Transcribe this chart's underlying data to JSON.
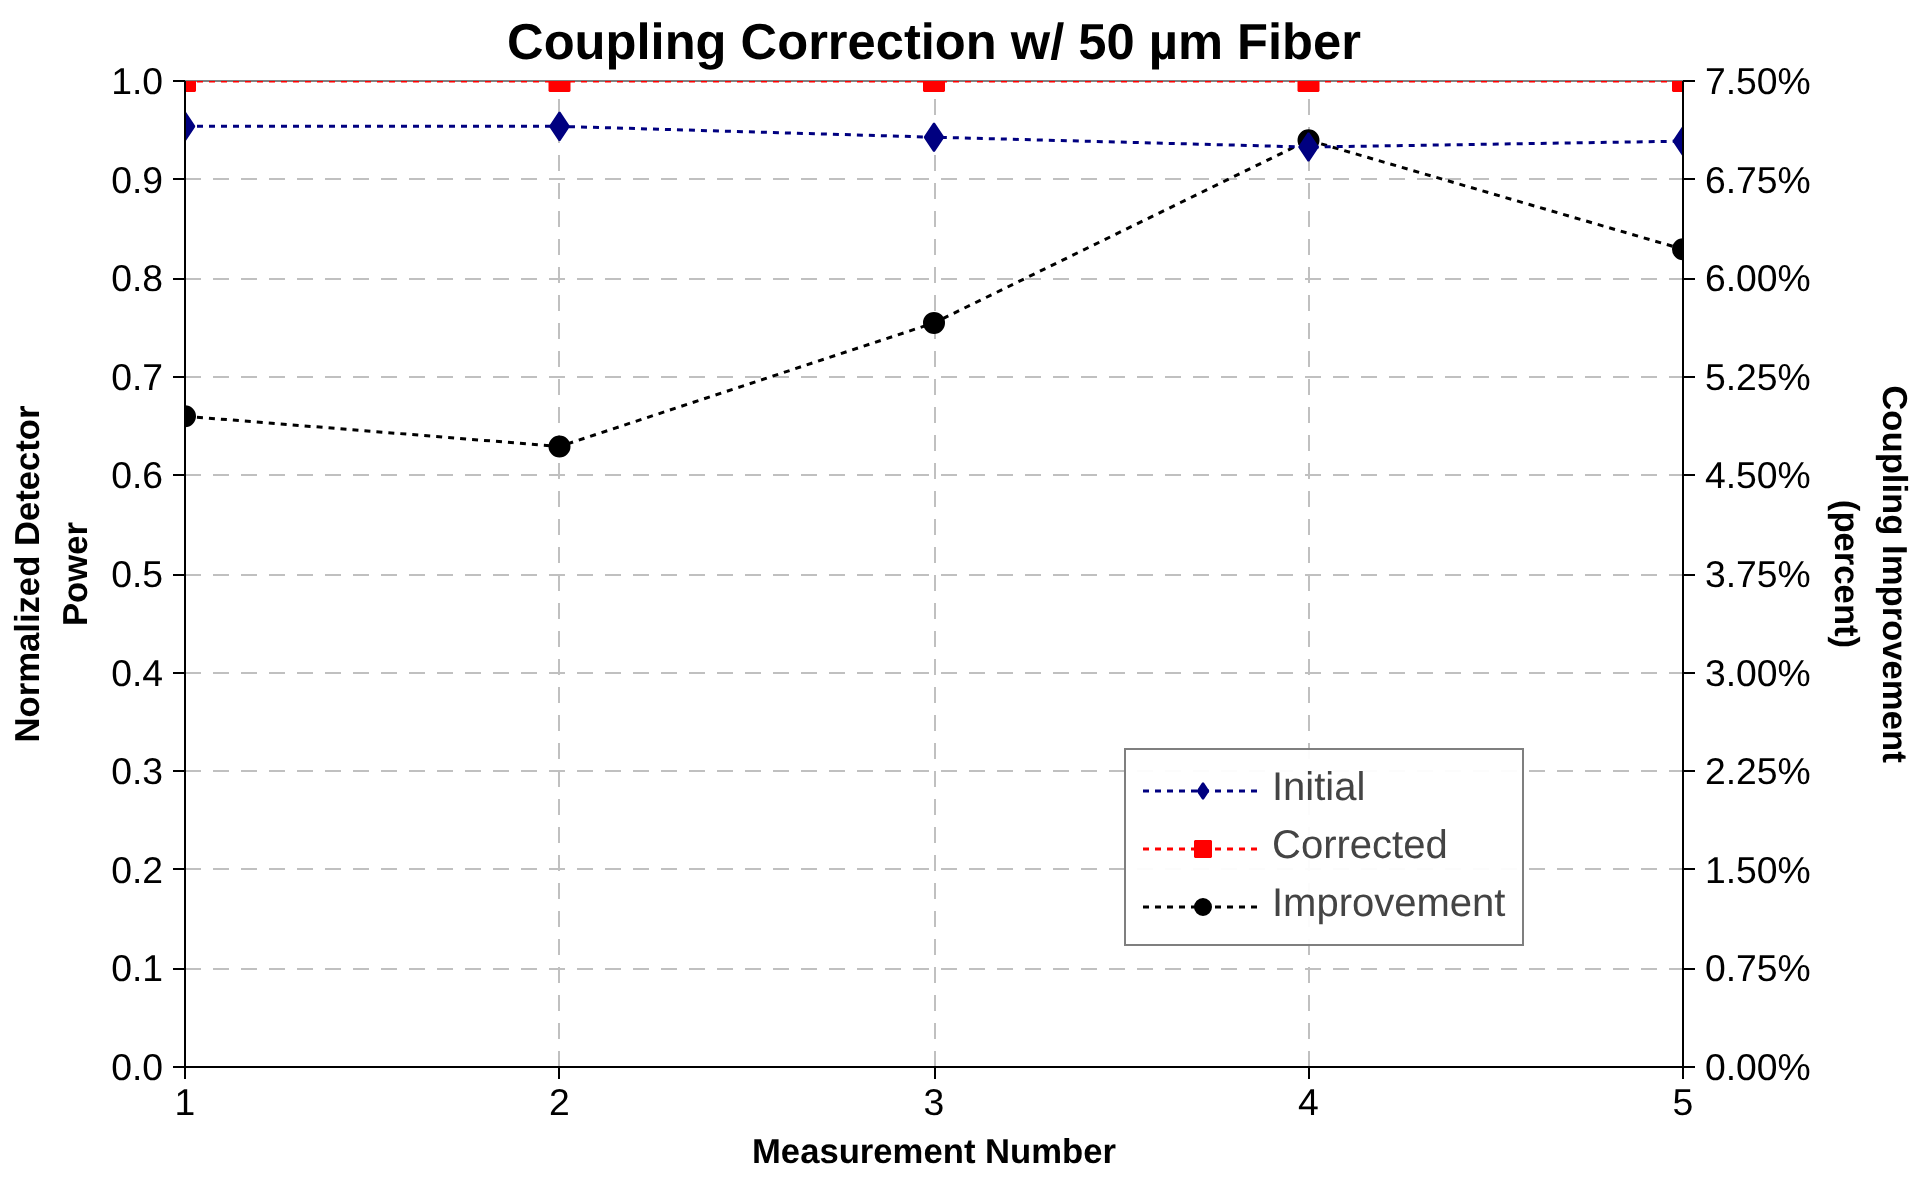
{
  "chart_data": {
    "type": "line",
    "title": "Coupling Correction w/ 50 µm Fiber",
    "xlabel": "Measurement Number",
    "ylabel": "Normalized Detector\nPower",
    "y2label": "Coupling Improvement\n(percent)",
    "x": [
      1,
      2,
      3,
      4,
      5
    ],
    "xlim": [
      1,
      5
    ],
    "xticks": [
      1,
      2,
      3,
      4,
      5
    ],
    "ylim": [
      0,
      1.0
    ],
    "yticks": [
      {
        "value": 0,
        "label": "0.0"
      },
      0.1,
      0.2,
      0.3,
      0.4,
      0.5,
      0.6,
      0.7,
      0.8,
      0.9,
      {
        "value": 1.0,
        "label": "1.0"
      }
    ],
    "y2lim": [
      0,
      7.5
    ],
    "y2ticks": [
      {
        "value": 0,
        "label": "0.00%"
      },
      {
        "value": 0.75,
        "label": "0.75%"
      },
      {
        "value": 1.5,
        "label": "1.50%"
      },
      {
        "value": 2.25,
        "label": "2.25%"
      },
      {
        "value": 3,
        "label": "3.00%"
      },
      {
        "value": 3.75,
        "label": "3.75%"
      },
      {
        "value": 4.5,
        "label": "4.50%"
      },
      {
        "value": 5.25,
        "label": "5.25%"
      },
      {
        "value": 6,
        "label": "6.00%"
      },
      {
        "value": 6.75,
        "label": "6.75%"
      },
      {
        "value": 7.5,
        "label": "7.50%"
      }
    ],
    "series": [
      {
        "name": "Initial",
        "color": "#000080",
        "marker": "diamond",
        "values": [
          0.954,
          0.954,
          0.943,
          0.933,
          0.939
        ]
      },
      {
        "name": "Corrected",
        "color": "#ff0000",
        "marker": "square",
        "values": [
          1.0,
          1.0,
          1.0,
          1.0,
          1.0
        ]
      },
      {
        "name": "Improvement",
        "color": "#000000",
        "marker": "circle",
        "axis": "y2",
        "values": [
          4.95,
          4.72,
          5.66,
          7.05,
          6.22
        ]
      }
    ],
    "line_style": "dotted",
    "grid": true,
    "legend": "bottom right"
  }
}
